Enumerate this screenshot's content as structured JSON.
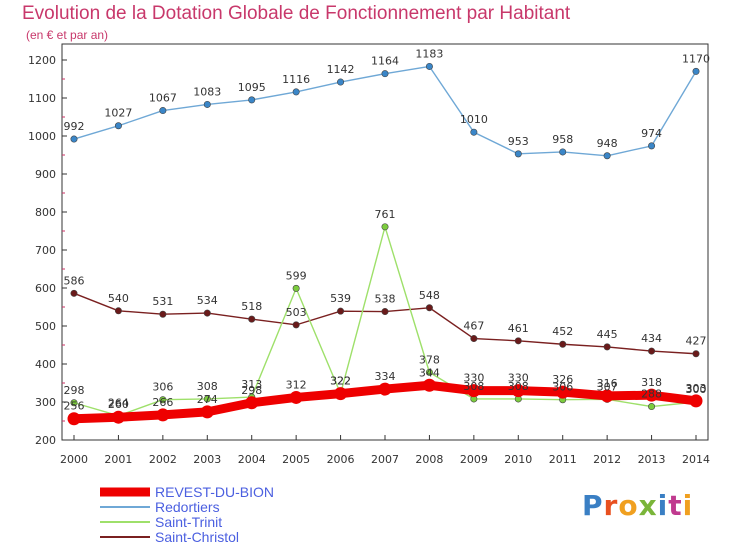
{
  "title": "Evolution de la Dotation Globale de Fonctionnement par Habitant",
  "subtitle": "(en € et par an)",
  "brand": "Proxiti",
  "brand_colors": [
    "#3a7fc4",
    "#e8501f",
    "#f0a020",
    "#7ab53a",
    "#3a7fc4",
    "#c03a8f",
    "#f0a020"
  ],
  "chart_data": {
    "type": "line",
    "title": "Evolution de la Dotation Globale de Fonctionnement par Habitant",
    "subtitle": "(en € et par an)",
    "xlabel": "",
    "ylabel": "",
    "ylim": [
      200,
      1200
    ],
    "yticks": [
      200,
      300,
      400,
      500,
      600,
      700,
      800,
      900,
      1000,
      1100,
      1200
    ],
    "grid": false,
    "legend_position": "bottom-left",
    "x": [
      "2000",
      "2001",
      "2002",
      "2003",
      "2004",
      "2005",
      "2006",
      "2007",
      "2008",
      "2009",
      "2010",
      "2011",
      "2012",
      "2013",
      "2014"
    ],
    "series": [
      {
        "name": "REVEST-DU-BION",
        "color": "#ee0000",
        "marker_color": "#ee0000",
        "label_color": "#333333",
        "bold": true,
        "values": [
          256,
          260,
          266,
          274,
          298,
          312,
          322,
          334,
          344,
          330,
          330,
          326,
          316,
          318,
          303
        ],
        "labels": [
          "256",
          "260",
          "266",
          "274",
          "298",
          "312",
          "322",
          "334",
          "344",
          "330",
          "330",
          "326",
          "316",
          "318",
          "303"
        ]
      },
      {
        "name": "Redortiers",
        "color": "#6fa8d6",
        "marker_color": "#3a86c8",
        "label_color": "#333333",
        "bold": false,
        "values": [
          992,
          1027,
          1067,
          1083,
          1095,
          1116,
          1142,
          1164,
          1183,
          1010,
          953,
          958,
          948,
          974,
          1170
        ],
        "labels": [
          "992",
          "1027",
          "1067",
          "1083",
          "1095",
          "1116",
          "1142",
          "1164",
          "1183",
          "1010",
          "953",
          "958",
          "948",
          "974",
          "1170"
        ]
      },
      {
        "name": "Saint-Trinit",
        "color": "#9ee06a",
        "marker_color": "#7ccc3e",
        "label_color": "#333333",
        "bold": false,
        "values": [
          298,
          264,
          306,
          308,
          313,
          599,
          322,
          761,
          378,
          308,
          308,
          306,
          307,
          288,
          300
        ],
        "labels": [
          "298",
          "264",
          "306",
          "308",
          "313",
          "599",
          "322",
          "761",
          "378",
          "308",
          "308",
          "306",
          "307",
          "288",
          "300"
        ]
      },
      {
        "name": "Saint-Christol",
        "color": "#7a2020",
        "marker_color": "#6a1a1a",
        "label_color": "#333333",
        "bold": false,
        "values": [
          586,
          540,
          531,
          534,
          518,
          503,
          539,
          538,
          548,
          467,
          461,
          452,
          445,
          434,
          427
        ],
        "labels": [
          "586",
          "540",
          "531",
          "534",
          "518",
          "503",
          "539",
          "538",
          "548",
          "467",
          "461",
          "452",
          "445",
          "434",
          "427"
        ]
      }
    ],
    "legend": [
      {
        "name": "REVEST-DU-BION",
        "color": "#ee0000",
        "text_color": "#4b5fe0",
        "bold": true
      },
      {
        "name": "Redortiers",
        "color": "#6fa8d6",
        "text_color": "#4b5fe0",
        "bold": false
      },
      {
        "name": "Saint-Trinit",
        "color": "#9ee06a",
        "text_color": "#4b5fe0",
        "bold": false
      },
      {
        "name": "Saint-Christol",
        "color": "#7a2020",
        "text_color": "#4b5fe0",
        "bold": false
      }
    ]
  }
}
